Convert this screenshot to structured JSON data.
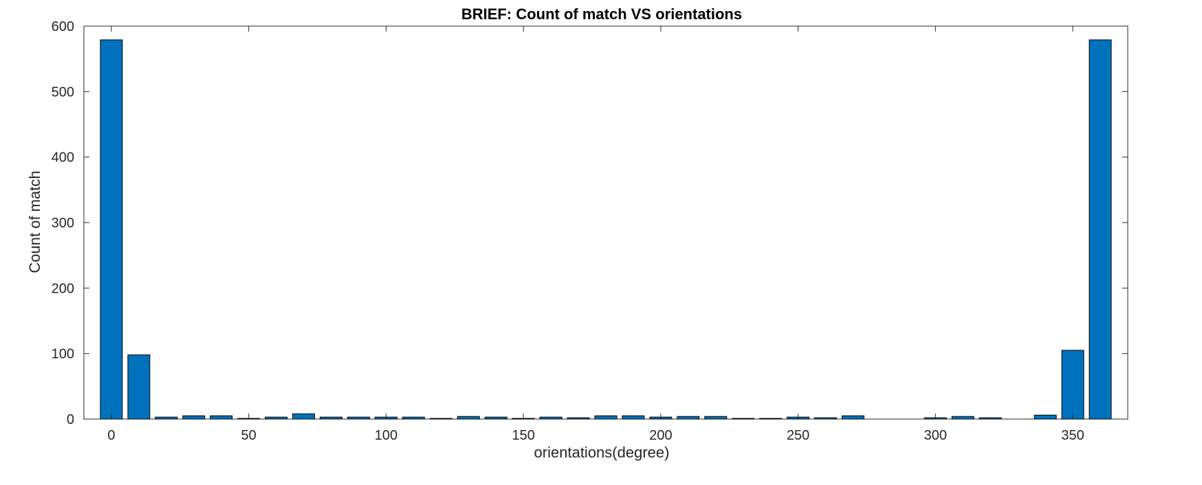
{
  "chart_data": {
    "type": "bar",
    "title": "BRIEF: Count of match VS orientations",
    "xlabel": "orientations(degree)",
    "ylabel": "Count of match",
    "x": [
      0,
      10,
      20,
      30,
      40,
      50,
      60,
      70,
      80,
      90,
      100,
      110,
      120,
      130,
      140,
      150,
      160,
      170,
      180,
      190,
      200,
      210,
      220,
      230,
      240,
      250,
      260,
      270,
      280,
      290,
      300,
      310,
      320,
      330,
      340,
      350,
      360
    ],
    "values": [
      579,
      98,
      3,
      5,
      5,
      1,
      3,
      8,
      3,
      3,
      3,
      3,
      1,
      4,
      3,
      1,
      3,
      2,
      5,
      5,
      3,
      4,
      4,
      1,
      1,
      3,
      2,
      5,
      0,
      0,
      2,
      4,
      2,
      0,
      6,
      105,
      579
    ],
    "xlim": [
      -10,
      370
    ],
    "ylim": [
      0,
      600
    ],
    "xticks": [
      0,
      50,
      100,
      150,
      200,
      250,
      300,
      350
    ],
    "yticks": [
      0,
      100,
      200,
      300,
      400,
      500,
      600
    ],
    "bar_color": "#0072BD",
    "grid": false,
    "legend": "none"
  }
}
